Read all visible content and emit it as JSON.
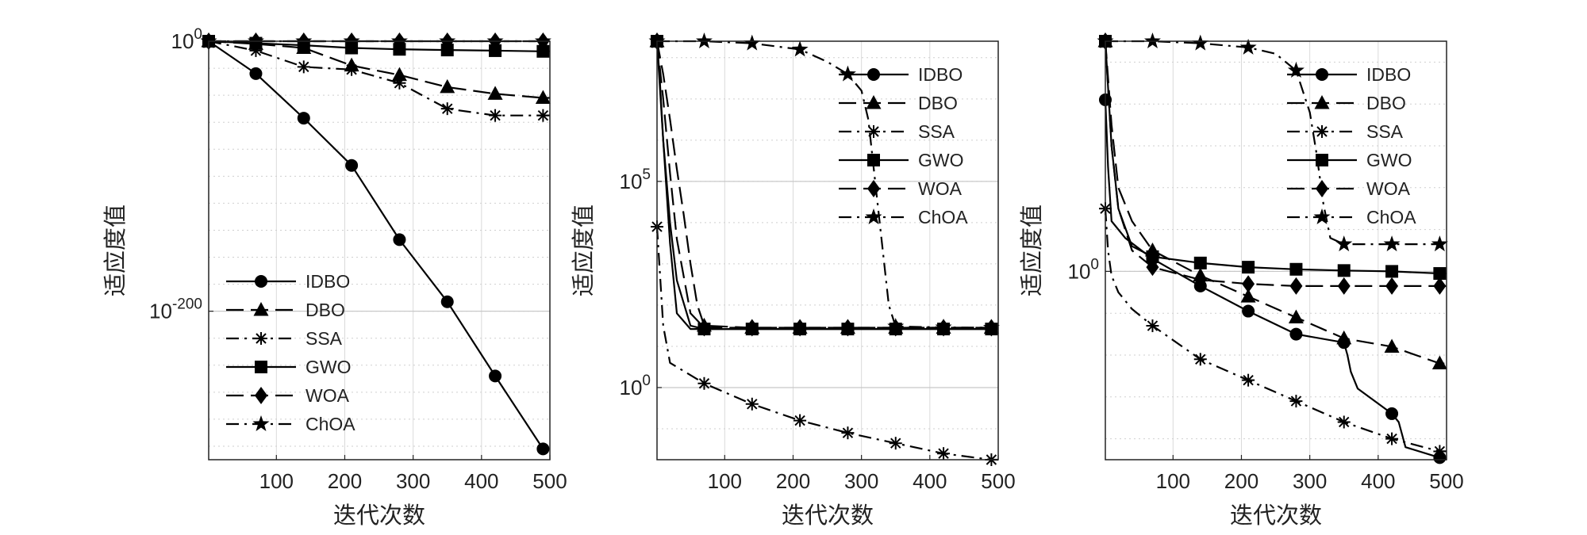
{
  "figure": {
    "panels": [
      {
        "ylabel": "适应度值",
        "xlabel": "迭代次数"
      },
      {
        "ylabel": "适应度值",
        "xlabel": "迭代次数"
      },
      {
        "ylabel": "适应度值",
        "xlabel": "迭代次数"
      }
    ]
  },
  "chart_data": [
    {
      "type": "line",
      "title": "",
      "xlabel": "迭代次数",
      "ylabel": "适应度值",
      "yscale": "log",
      "xlim": [
        1,
        500
      ],
      "ylim_log10": [
        -310,
        0
      ],
      "xticks": [
        100,
        200,
        300,
        400,
        500
      ],
      "yticks": [
        {
          "label": "10",
          "exp": "0",
          "log10": 0
        },
        {
          "label": "10",
          "exp": "-200",
          "log10": -200
        }
      ],
      "grid": true,
      "legend": "bottom-left",
      "series": [
        {
          "name": "IDBO",
          "line": "solid",
          "marker": "circle",
          "x": [
            1,
            70,
            140,
            210,
            280,
            350,
            420,
            490
          ],
          "log10_y": [
            0,
            -24,
            -57,
            -92,
            -147,
            -193,
            -248,
            -302
          ]
        },
        {
          "name": "DBO",
          "line": "dashed",
          "marker": "triangle",
          "x": [
            1,
            70,
            140,
            210,
            280,
            350,
            420,
            490,
            500
          ],
          "log10_y": [
            0,
            -2,
            -5,
            -18,
            -25,
            -34,
            -39,
            -42,
            -42
          ]
        },
        {
          "name": "SSA",
          "line": "dashdot",
          "marker": "asterisk",
          "x": [
            1,
            70,
            140,
            210,
            280,
            350,
            420,
            490,
            500
          ],
          "log10_y": [
            0,
            -7,
            -19,
            -21,
            -31,
            -50,
            -55,
            -55,
            -55
          ]
        },
        {
          "name": "GWO",
          "line": "solid",
          "marker": "square",
          "x": [
            1,
            70,
            140,
            210,
            280,
            350,
            420,
            490,
            500
          ],
          "log10_y": [
            0,
            -1.5,
            -3,
            -5,
            -6,
            -6.5,
            -7,
            -7.5,
            -7.5
          ]
        },
        {
          "name": "WOA",
          "line": "dashed",
          "marker": "diamond",
          "x": [
            1,
            70,
            140,
            210,
            280,
            350,
            420,
            490,
            500
          ],
          "log10_y": [
            0,
            0,
            0,
            0,
            0,
            0,
            0,
            0,
            0
          ]
        },
        {
          "name": "ChOA",
          "line": "dashdot",
          "marker": "star",
          "x": [
            1,
            70,
            140,
            210,
            280,
            350,
            420,
            490,
            500
          ],
          "log10_y": [
            0,
            0,
            0,
            0,
            0,
            0,
            0,
            0,
            0
          ]
        }
      ]
    },
    {
      "type": "line",
      "title": "",
      "xlabel": "迭代次数",
      "ylabel": "适应度值",
      "yscale": "log",
      "xlim": [
        1,
        500
      ],
      "ylim_log10": [
        -1.75,
        8.4
      ],
      "xticks": [
        100,
        200,
        300,
        400,
        500
      ],
      "yticks": [
        {
          "label": "10",
          "exp": "5",
          "log10": 5
        },
        {
          "label": "10",
          "exp": "0",
          "log10": 0
        }
      ],
      "grid": true,
      "legend": "top-right",
      "series": [
        {
          "name": "IDBO",
          "line": "solid",
          "marker": "circle",
          "x": [
            1,
            5,
            10,
            20,
            30,
            50,
            70,
            140,
            210,
            280,
            350,
            420,
            490,
            500
          ],
          "log10_y": [
            8.4,
            7.5,
            6,
            3.5,
            1.8,
            1.42,
            1.42,
            1.42,
            1.42,
            1.42,
            1.42,
            1.42,
            1.42,
            1.42
          ]
        },
        {
          "name": "DBO",
          "line": "dashed",
          "marker": "triangle",
          "x": [
            1,
            10,
            20,
            30,
            40,
            50,
            60,
            70,
            140,
            210,
            280,
            350,
            420,
            490,
            500
          ],
          "log10_y": [
            8.4,
            7.6,
            6.5,
            5.3,
            4.2,
            3,
            2,
            1.5,
            1.45,
            1.45,
            1.45,
            1.45,
            1.45,
            1.45,
            1.45
          ]
        },
        {
          "name": "SSA",
          "line": "dashdot",
          "marker": "asterisk",
          "x": [
            1,
            10,
            20,
            70,
            140,
            210,
            280,
            350,
            420,
            490,
            500
          ],
          "log10_y": [
            3.9,
            1.5,
            0.6,
            0.1,
            -0.4,
            -0.8,
            -1.1,
            -1.35,
            -1.6,
            -1.78,
            -1.8
          ]
        },
        {
          "name": "GWO",
          "line": "solid",
          "marker": "square",
          "x": [
            1,
            10,
            20,
            30,
            50,
            70,
            140,
            210,
            280,
            350,
            420,
            490,
            500
          ],
          "log10_y": [
            8.4,
            6,
            4,
            2.6,
            1.5,
            1.42,
            1.42,
            1.42,
            1.42,
            1.42,
            1.42,
            1.42,
            1.42
          ]
        },
        {
          "name": "WOA",
          "line": "dashed",
          "marker": "diamond",
          "x": [
            1,
            10,
            20,
            30,
            50,
            70,
            140,
            210,
            280,
            350,
            420,
            490,
            500
          ],
          "log10_y": [
            8.4,
            7,
            5.2,
            3.6,
            1.8,
            1.45,
            1.45,
            1.45,
            1.45,
            1.45,
            1.45,
            1.45,
            1.45
          ]
        },
        {
          "name": "ChOA",
          "line": "dashdot",
          "marker": "star",
          "x": [
            1,
            70,
            140,
            210,
            250,
            280,
            300,
            310,
            320,
            330,
            340,
            350,
            420,
            490,
            500
          ],
          "log10_y": [
            8.4,
            8.4,
            8.35,
            8.2,
            7.9,
            7.6,
            7.2,
            6.5,
            5,
            3.5,
            2,
            1.48,
            1.46,
            1.45,
            1.45
          ]
        }
      ]
    },
    {
      "type": "line",
      "title": "",
      "xlabel": "迭代次数",
      "ylabel": "适应度值",
      "yscale": "log",
      "xlim": [
        1,
        500
      ],
      "ylim_log10": [
        -4.5,
        5.5
      ],
      "xticks": [
        100,
        200,
        300,
        400,
        500
      ],
      "yticks": [
        {
          "label": "10",
          "exp": "0",
          "log10": 0
        }
      ],
      "grid": true,
      "legend": "top-right",
      "series": [
        {
          "name": "IDBO",
          "line": "solid",
          "marker": "circle",
          "x": [
            1,
            5,
            10,
            30,
            70,
            140,
            210,
            280,
            350,
            355,
            360,
            370,
            420,
            430,
            440,
            490,
            500
          ],
          "log10_y": [
            4.1,
            2.5,
            1.2,
            0.8,
            0.3,
            -0.35,
            -0.95,
            -1.5,
            -1.7,
            -2,
            -2.4,
            -2.8,
            -3.4,
            -3.6,
            -4.2,
            -4.45,
            -4.5
          ]
        },
        {
          "name": "DBO",
          "line": "dashed",
          "marker": "triangle",
          "x": [
            1,
            10,
            20,
            40,
            70,
            140,
            210,
            280,
            350,
            420,
            490,
            500
          ],
          "log10_y": [
            5.5,
            3.5,
            2,
            1.2,
            0.5,
            -0.1,
            -0.6,
            -1.1,
            -1.6,
            -1.8,
            -2.2,
            -2.2
          ]
        },
        {
          "name": "SSA",
          "line": "dashdot",
          "marker": "asterisk",
          "x": [
            1,
            5,
            10,
            20,
            40,
            70,
            140,
            210,
            280,
            350,
            420,
            490,
            500
          ],
          "log10_y": [
            1.5,
            0.5,
            -0.1,
            -0.5,
            -0.9,
            -1.3,
            -2.1,
            -2.6,
            -3.1,
            -3.6,
            -4,
            -4.3,
            -4.3
          ]
        },
        {
          "name": "GWO",
          "line": "solid",
          "marker": "square",
          "x": [
            1,
            10,
            20,
            40,
            70,
            140,
            210,
            280,
            350,
            420,
            490,
            500
          ],
          "log10_y": [
            5.5,
            3,
            1.5,
            0.6,
            0.35,
            0.2,
            0.1,
            0.05,
            0.02,
            0,
            -0.05,
            -0.05
          ]
        },
        {
          "name": "WOA",
          "line": "dashed",
          "marker": "diamond",
          "x": [
            1,
            10,
            20,
            40,
            70,
            140,
            210,
            280,
            350,
            420,
            490,
            500
          ],
          "log10_y": [
            5.5,
            3,
            1.5,
            0.5,
            0.1,
            -0.2,
            -0.3,
            -0.35,
            -0.35,
            -0.35,
            -0.35,
            -0.35
          ]
        },
        {
          "name": "ChOA",
          "line": "dashdot",
          "marker": "star",
          "x": [
            1,
            70,
            140,
            210,
            250,
            280,
            300,
            310,
            320,
            330,
            350,
            420,
            490,
            500
          ],
          "log10_y": [
            5.5,
            5.5,
            5.45,
            5.35,
            5.2,
            4.8,
            3.8,
            2.8,
            1.6,
            0.8,
            0.65,
            0.65,
            0.65,
            0.65
          ]
        }
      ]
    }
  ]
}
